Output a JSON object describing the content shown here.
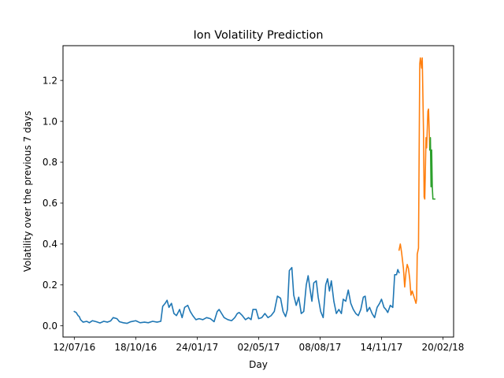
{
  "chart_data": {
    "type": "line",
    "title": "Ion Volatility Prediction",
    "xlabel": "Day",
    "ylabel": "Volatility over the previous 7 days",
    "xlim": [
      "2016-06-24",
      "2018-03-09"
    ],
    "ylim": [
      -0.055,
      1.37
    ],
    "x_ticks": [
      {
        "date": "2016-07-12",
        "label": "12/07/16"
      },
      {
        "date": "2016-10-18",
        "label": "18/10/16"
      },
      {
        "date": "2017-01-24",
        "label": "24/01/17"
      },
      {
        "date": "2017-05-02",
        "label": "02/05/17"
      },
      {
        "date": "2017-08-08",
        "label": "08/08/17"
      },
      {
        "date": "2017-11-14",
        "label": "14/11/17"
      },
      {
        "date": "2018-02-20",
        "label": "20/02/18"
      }
    ],
    "y_ticks": [
      {
        "value": 0.0,
        "label": "0.0"
      },
      {
        "value": 0.2,
        "label": "0.2"
      },
      {
        "value": 0.4,
        "label": "0.4"
      },
      {
        "value": 0.6,
        "label": "0.6"
      },
      {
        "value": 0.8,
        "label": "0.8"
      },
      {
        "value": 1.0,
        "label": "1.0"
      },
      {
        "value": 1.2,
        "label": "1.2"
      }
    ],
    "grid": false,
    "legend": "none",
    "series": [
      {
        "color": "#1f77b4",
        "points": [
          [
            "2016-07-12",
            0.07
          ],
          [
            "2016-07-15",
            0.065
          ],
          [
            "2016-07-18",
            0.05
          ],
          [
            "2016-07-20",
            0.045
          ],
          [
            "2016-07-22",
            0.03
          ],
          [
            "2016-07-26",
            0.018
          ],
          [
            "2016-08-01",
            0.022
          ],
          [
            "2016-08-05",
            0.015
          ],
          [
            "2016-08-10",
            0.025
          ],
          [
            "2016-08-16",
            0.02
          ],
          [
            "2016-08-22",
            0.014
          ],
          [
            "2016-08-28",
            0.022
          ],
          [
            "2016-09-03",
            0.018
          ],
          [
            "2016-09-08",
            0.024
          ],
          [
            "2016-09-12",
            0.04
          ],
          [
            "2016-09-18",
            0.035
          ],
          [
            "2016-09-22",
            0.02
          ],
          [
            "2016-09-28",
            0.015
          ],
          [
            "2016-10-04",
            0.012
          ],
          [
            "2016-10-10",
            0.02
          ],
          [
            "2016-10-18",
            0.025
          ],
          [
            "2016-10-25",
            0.015
          ],
          [
            "2016-11-01",
            0.018
          ],
          [
            "2016-11-07",
            0.015
          ],
          [
            "2016-11-14",
            0.022
          ],
          [
            "2016-11-21",
            0.018
          ],
          [
            "2016-11-27",
            0.022
          ],
          [
            "2016-11-30",
            0.095
          ],
          [
            "2016-12-04",
            0.11
          ],
          [
            "2016-12-07",
            0.125
          ],
          [
            "2016-12-10",
            0.09
          ],
          [
            "2016-12-14",
            0.11
          ],
          [
            "2016-12-18",
            0.06
          ],
          [
            "2016-12-22",
            0.05
          ],
          [
            "2016-12-27",
            0.08
          ],
          [
            "2016-12-31",
            0.04
          ],
          [
            "2017-01-04",
            0.09
          ],
          [
            "2017-01-09",
            0.1
          ],
          [
            "2017-01-13",
            0.07
          ],
          [
            "2017-01-17",
            0.05
          ],
          [
            "2017-01-22",
            0.03
          ],
          [
            "2017-01-27",
            0.035
          ],
          [
            "2017-02-02",
            0.03
          ],
          [
            "2017-02-08",
            0.04
          ],
          [
            "2017-02-14",
            0.035
          ],
          [
            "2017-02-20",
            0.02
          ],
          [
            "2017-02-25",
            0.07
          ],
          [
            "2017-02-28",
            0.08
          ],
          [
            "2017-03-04",
            0.06
          ],
          [
            "2017-03-08",
            0.04
          ],
          [
            "2017-03-14",
            0.03
          ],
          [
            "2017-03-20",
            0.025
          ],
          [
            "2017-03-25",
            0.04
          ],
          [
            "2017-03-29",
            0.06
          ],
          [
            "2017-04-01",
            0.065
          ],
          [
            "2017-04-06",
            0.05
          ],
          [
            "2017-04-11",
            0.03
          ],
          [
            "2017-04-16",
            0.04
          ],
          [
            "2017-04-20",
            0.03
          ],
          [
            "2017-04-23",
            0.08
          ],
          [
            "2017-04-28",
            0.08
          ],
          [
            "2017-05-02",
            0.035
          ],
          [
            "2017-05-07",
            0.04
          ],
          [
            "2017-05-12",
            0.06
          ],
          [
            "2017-05-17",
            0.04
          ],
          [
            "2017-05-22",
            0.05
          ],
          [
            "2017-05-27",
            0.07
          ],
          [
            "2017-06-01",
            0.145
          ],
          [
            "2017-06-06",
            0.135
          ],
          [
            "2017-06-10",
            0.07
          ],
          [
            "2017-06-14",
            0.045
          ],
          [
            "2017-06-17",
            0.08
          ],
          [
            "2017-06-20",
            0.27
          ],
          [
            "2017-06-24",
            0.285
          ],
          [
            "2017-06-27",
            0.15
          ],
          [
            "2017-07-01",
            0.1
          ],
          [
            "2017-07-05",
            0.14
          ],
          [
            "2017-07-09",
            0.06
          ],
          [
            "2017-07-13",
            0.07
          ],
          [
            "2017-07-17",
            0.2
          ],
          [
            "2017-07-20",
            0.245
          ],
          [
            "2017-07-23",
            0.18
          ],
          [
            "2017-07-26",
            0.12
          ],
          [
            "2017-07-29",
            0.21
          ],
          [
            "2017-08-02",
            0.22
          ],
          [
            "2017-08-05",
            0.14
          ],
          [
            "2017-08-09",
            0.07
          ],
          [
            "2017-08-13",
            0.04
          ],
          [
            "2017-08-17",
            0.2
          ],
          [
            "2017-08-20",
            0.23
          ],
          [
            "2017-08-23",
            0.17
          ],
          [
            "2017-08-26",
            0.22
          ],
          [
            "2017-08-30",
            0.12
          ],
          [
            "2017-09-03",
            0.06
          ],
          [
            "2017-09-07",
            0.08
          ],
          [
            "2017-09-11",
            0.06
          ],
          [
            "2017-09-14",
            0.13
          ],
          [
            "2017-09-18",
            0.12
          ],
          [
            "2017-09-22",
            0.175
          ],
          [
            "2017-09-26",
            0.11
          ],
          [
            "2017-09-30",
            0.08
          ],
          [
            "2017-10-04",
            0.06
          ],
          [
            "2017-10-08",
            0.05
          ],
          [
            "2017-10-12",
            0.08
          ],
          [
            "2017-10-16",
            0.14
          ],
          [
            "2017-10-19",
            0.145
          ],
          [
            "2017-10-22",
            0.07
          ],
          [
            "2017-10-26",
            0.09
          ],
          [
            "2017-10-30",
            0.06
          ],
          [
            "2017-11-03",
            0.04
          ],
          [
            "2017-11-07",
            0.09
          ],
          [
            "2017-11-11",
            0.11
          ],
          [
            "2017-11-14",
            0.13
          ],
          [
            "2017-11-18",
            0.09
          ],
          [
            "2017-11-21",
            0.08
          ],
          [
            "2017-11-24",
            0.065
          ],
          [
            "2017-11-28",
            0.1
          ],
          [
            "2017-12-02",
            0.09
          ],
          [
            "2017-12-05",
            0.25
          ],
          [
            "2017-12-08",
            0.25
          ],
          [
            "2017-12-10",
            0.275
          ],
          [
            "2017-12-12",
            0.26
          ]
        ]
      },
      {
        "color": "#ff7f0e",
        "points": [
          [
            "2017-12-12",
            0.37
          ],
          [
            "2017-12-14",
            0.4
          ],
          [
            "2017-12-16",
            0.36
          ],
          [
            "2017-12-19",
            0.28
          ],
          [
            "2017-12-21",
            0.19
          ],
          [
            "2017-12-23",
            0.26
          ],
          [
            "2017-12-25",
            0.3
          ],
          [
            "2017-12-27",
            0.28
          ],
          [
            "2017-12-29",
            0.23
          ],
          [
            "2017-12-31",
            0.15
          ],
          [
            "2018-01-02",
            0.17
          ],
          [
            "2018-01-04",
            0.15
          ],
          [
            "2018-01-06",
            0.13
          ],
          [
            "2018-01-08",
            0.11
          ],
          [
            "2018-01-09",
            0.13
          ],
          [
            "2018-01-10",
            0.35
          ],
          [
            "2018-01-12",
            0.38
          ],
          [
            "2018-01-14",
            1.28
          ],
          [
            "2018-01-15",
            1.31
          ],
          [
            "2018-01-17",
            1.26
          ],
          [
            "2018-01-18",
            1.31
          ],
          [
            "2018-01-20",
            0.95
          ],
          [
            "2018-01-21",
            0.63
          ],
          [
            "2018-01-22",
            0.62
          ],
          [
            "2018-01-24",
            0.92
          ],
          [
            "2018-01-25",
            0.87
          ],
          [
            "2018-01-27",
            1.05
          ],
          [
            "2018-01-28",
            1.06
          ],
          [
            "2018-01-30",
            0.86
          ]
        ]
      },
      {
        "color": "#2ca02c",
        "points": [
          [
            "2018-01-30",
            0.86
          ],
          [
            "2018-01-31",
            0.92
          ],
          [
            "2018-02-01",
            0.68
          ],
          [
            "2018-02-02",
            0.86
          ],
          [
            "2018-02-03",
            0.68
          ],
          [
            "2018-02-04",
            0.62
          ],
          [
            "2018-02-05",
            0.62
          ],
          [
            "2018-02-07",
            0.62
          ]
        ]
      }
    ]
  }
}
